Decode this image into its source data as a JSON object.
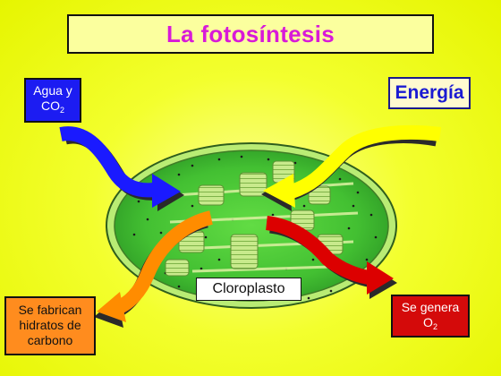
{
  "title": "La fotosíntesis",
  "inputs": {
    "water_co2": {
      "line1": "Agua y",
      "line2_main": "CO",
      "line2_sub": "2",
      "color": "#1c1cf2"
    },
    "energy": {
      "label": "Energía",
      "color": "#1a1ad2"
    }
  },
  "organelle": {
    "label": "Cloroplasto",
    "color": "#4fc93a"
  },
  "outputs": {
    "carbohydrates": {
      "line1": "Se fabrican",
      "line2": "hidratos de",
      "line3": "carbono",
      "color": "#ff8c1e"
    },
    "oxygen": {
      "line1": "Se genera",
      "line2_main": "O",
      "line2_sub": "2",
      "color": "#d40a0a"
    }
  },
  "arrow_colors": {
    "blue": "#1a1aff",
    "yellow": "#ffff00",
    "orange": "#ff8c00",
    "red": "#dc0000"
  }
}
